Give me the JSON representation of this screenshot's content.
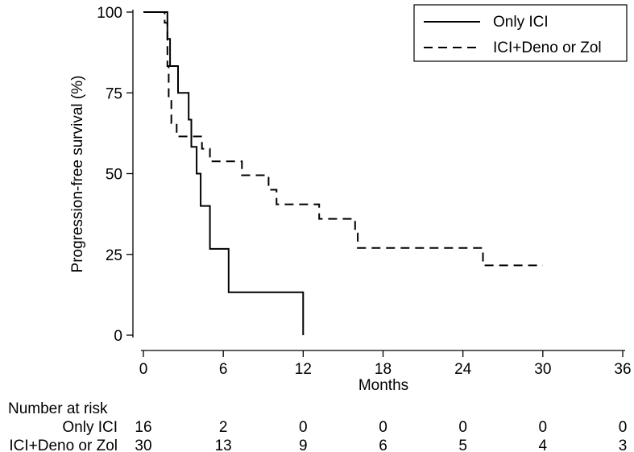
{
  "chart_data": {
    "type": "line",
    "title": "",
    "xlabel": "Months",
    "ylabel": "Progression-free survival (%)",
    "xlim": [
      0,
      36
    ],
    "ylim": [
      0,
      100
    ],
    "xticks": [
      0,
      6,
      12,
      18,
      24,
      30,
      36
    ],
    "yticks": [
      0,
      25,
      50,
      75,
      100
    ],
    "grid": false,
    "legend_position": "top-right",
    "series": [
      {
        "name": "Only ICI",
        "style": "solid",
        "color": "#000000",
        "points": [
          [
            0,
            100
          ],
          [
            1.0,
            100
          ],
          [
            1.0,
            100
          ],
          [
            1.8,
            100
          ],
          [
            1.8,
            91.7
          ],
          [
            2.0,
            91.7
          ],
          [
            2.0,
            83.3
          ],
          [
            2.6,
            83.3
          ],
          [
            2.6,
            75
          ],
          [
            3.4,
            75
          ],
          [
            3.4,
            66.7
          ],
          [
            3.6,
            66.7
          ],
          [
            3.6,
            58.3
          ],
          [
            4.0,
            58.3
          ],
          [
            4.0,
            50
          ],
          [
            4.3,
            50
          ],
          [
            4.3,
            40
          ],
          [
            5.0,
            40
          ],
          [
            5.0,
            26.7
          ],
          [
            6.4,
            26.7
          ],
          [
            6.4,
            13.3
          ],
          [
            12.0,
            13.3
          ],
          [
            12.0,
            0
          ]
        ]
      },
      {
        "name": "ICI+Deno or Zol",
        "style": "dashed",
        "color": "#000000",
        "points": [
          [
            0,
            100
          ],
          [
            1.6,
            100
          ],
          [
            1.6,
            96.7
          ],
          [
            1.8,
            96.7
          ],
          [
            1.8,
            83.3
          ],
          [
            1.9,
            83.3
          ],
          [
            1.9,
            73.3
          ],
          [
            2.1,
            73.3
          ],
          [
            2.1,
            65.6
          ],
          [
            2.5,
            65.6
          ],
          [
            2.5,
            61.5
          ],
          [
            4.4,
            61.5
          ],
          [
            4.4,
            57.7
          ],
          [
            5.0,
            57.7
          ],
          [
            5.0,
            53.8
          ],
          [
            7.4,
            53.8
          ],
          [
            7.4,
            49.5
          ],
          [
            9.4,
            49.5
          ],
          [
            9.4,
            45.0
          ],
          [
            10.0,
            45.0
          ],
          [
            10.0,
            40.5
          ],
          [
            13.2,
            40.5
          ],
          [
            13.2,
            36.0
          ],
          [
            15.9,
            36.0
          ],
          [
            15.9,
            31.5
          ],
          [
            16.1,
            31.5
          ],
          [
            16.1,
            27.0
          ],
          [
            25.5,
            27.0
          ],
          [
            25.5,
            21.6
          ],
          [
            30.0,
            21.6
          ]
        ]
      }
    ],
    "risk_table": {
      "heading": "Number at risk",
      "rows": [
        {
          "label": "Only ICI",
          "values": [
            "16",
            "2",
            "0",
            "0",
            "0",
            "0",
            "0"
          ]
        },
        {
          "label": "ICI+Deno or Zol",
          "values": [
            "30",
            "13",
            "9",
            "6",
            "5",
            "4",
            "3"
          ]
        }
      ]
    }
  }
}
